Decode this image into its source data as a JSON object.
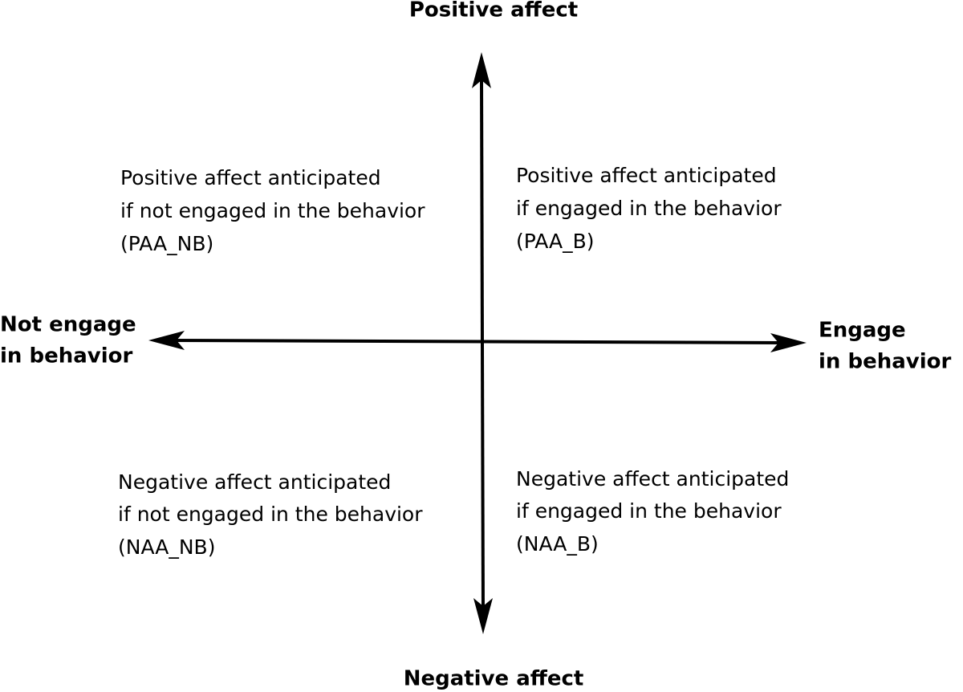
{
  "axes": {
    "top": "Positive affect",
    "bottom": "Negative affect",
    "left": [
      "Not engage",
      "in behavior"
    ],
    "right": [
      "Engage",
      "in behavior"
    ]
  },
  "quadrants": [
    {
      "position": "top-left",
      "lines": [
        "Positive affect anticipated",
        "if not engaged in the behavior",
        "(PAA_NB)"
      ]
    },
    {
      "position": "top-right",
      "lines": [
        "Positive affect anticipated",
        "if engaged in the behavior",
        "(PAA_B)"
      ]
    },
    {
      "position": "bottom-left",
      "lines": [
        "Negative affect anticipated",
        "if not engaged in the behavior",
        "(NAA_NB)"
      ]
    },
    {
      "position": "bottom-right",
      "lines": [
        "Negative affect anticipated",
        "if engaged in the behavior",
        "(NAA_B)"
      ]
    }
  ]
}
